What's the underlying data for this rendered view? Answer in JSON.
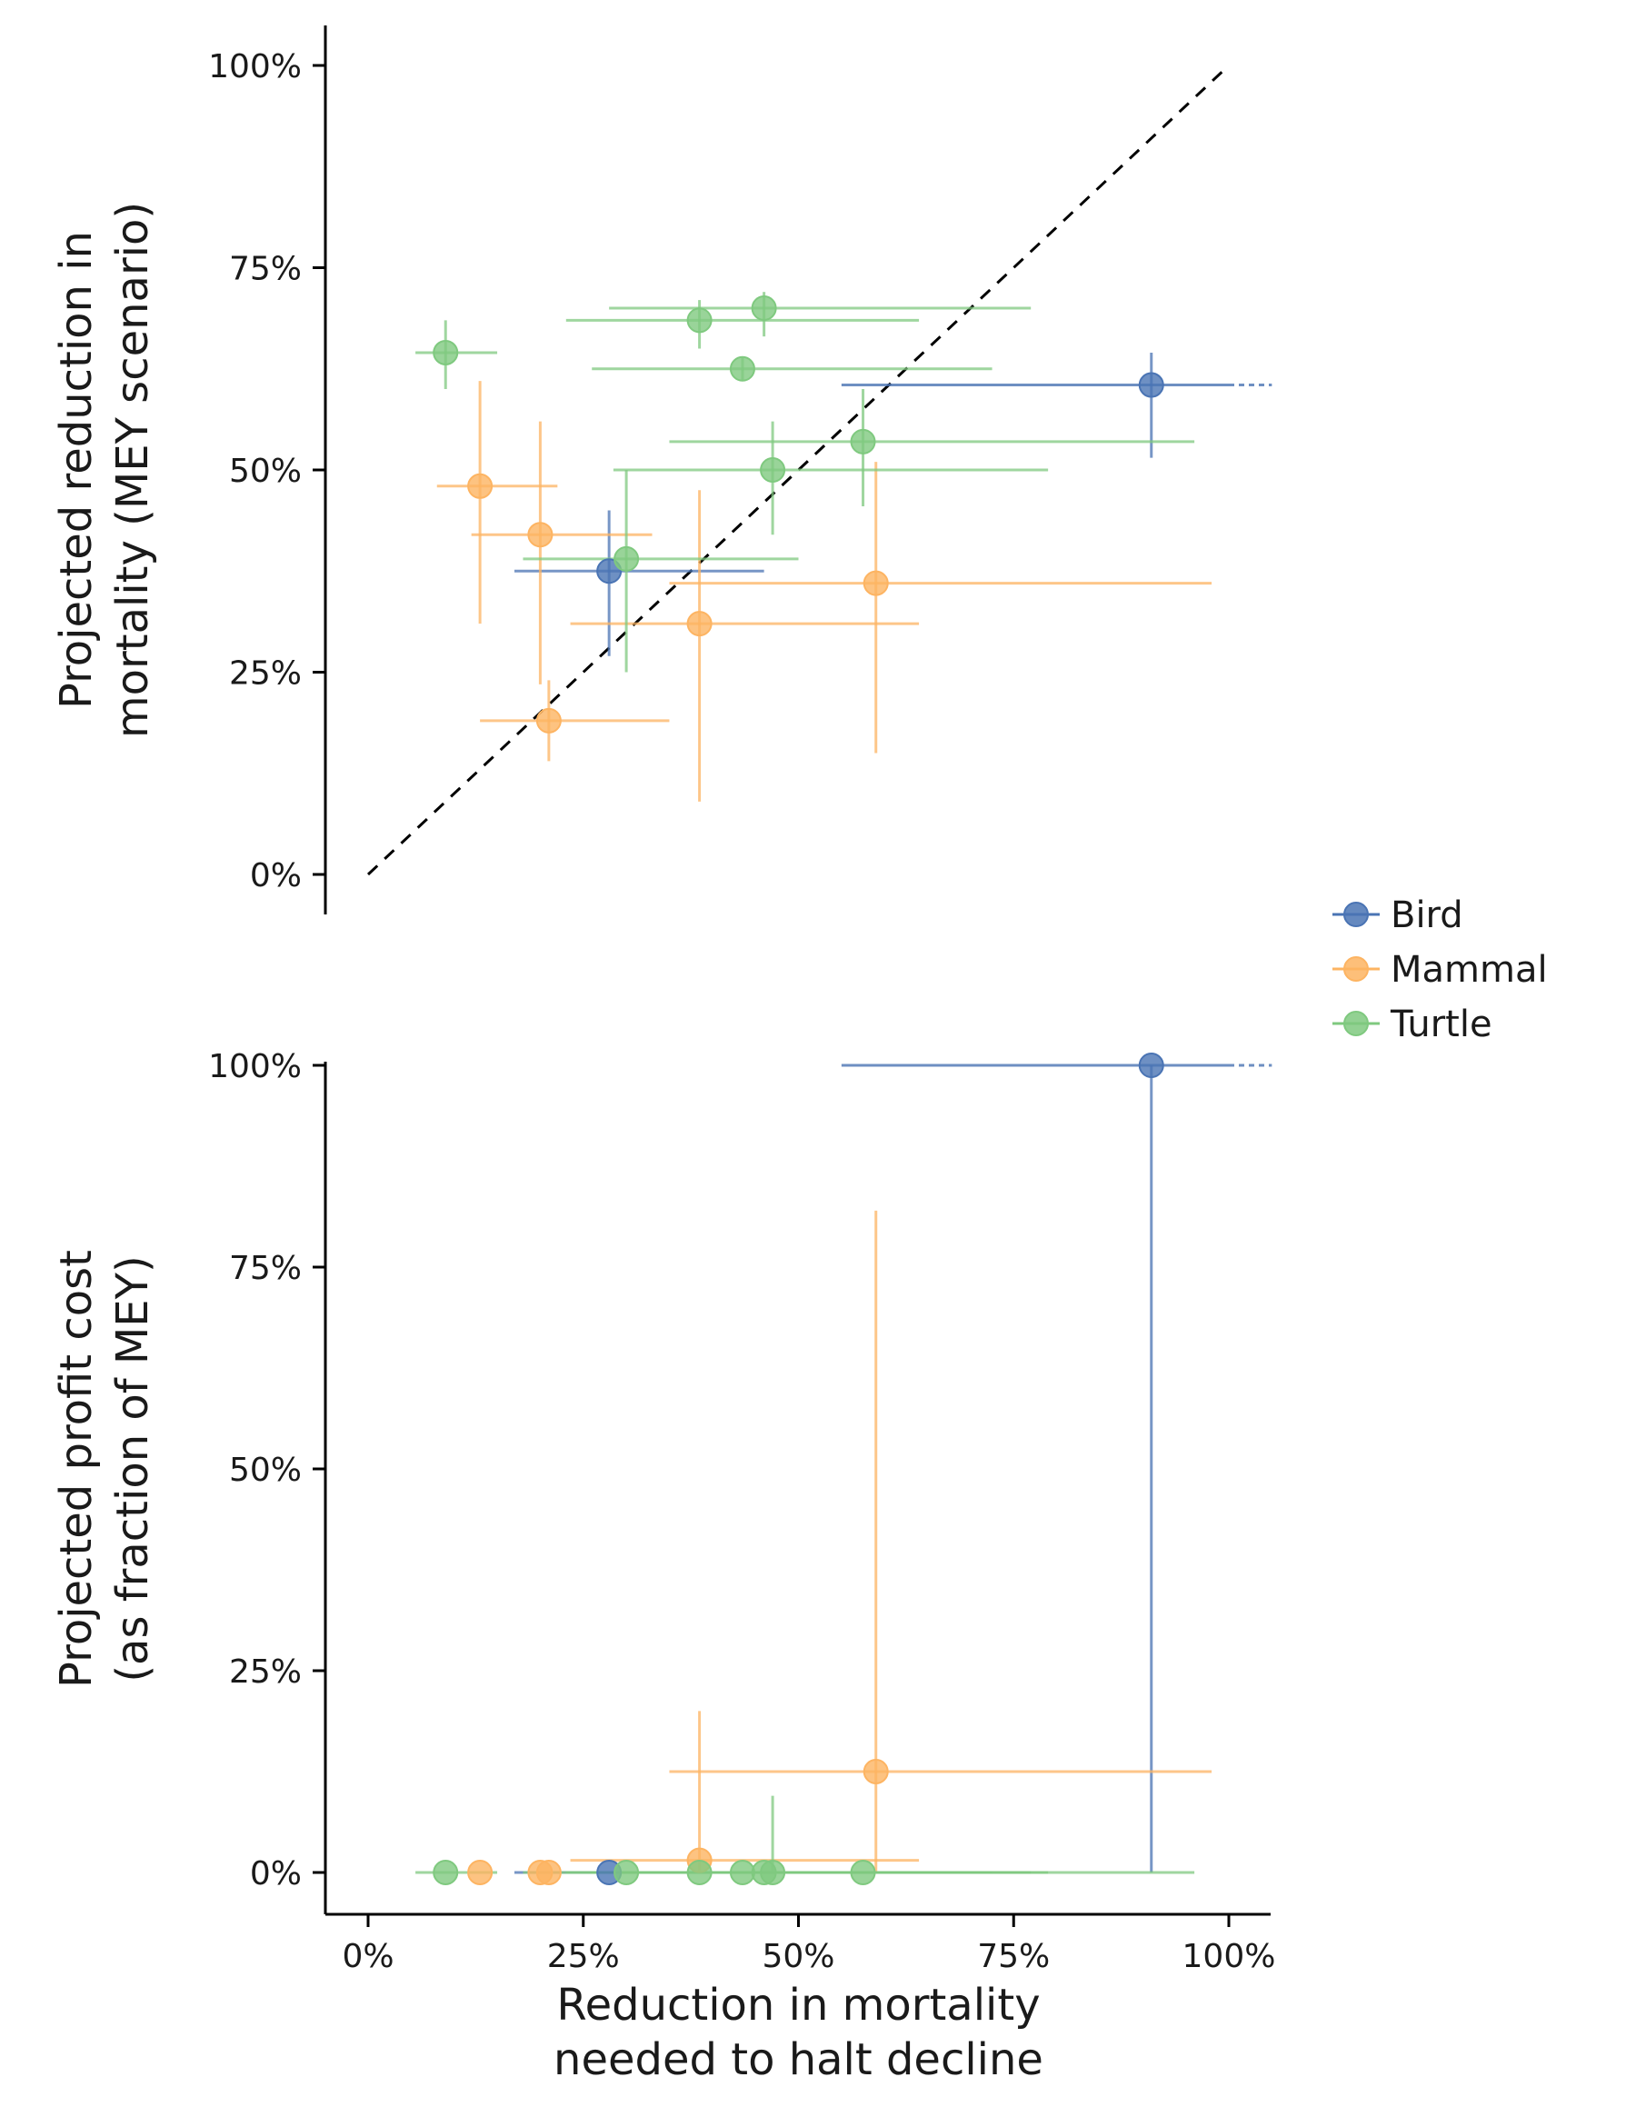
{
  "chart_data": [
    {
      "type": "scatter",
      "panel": "top",
      "ylabel_lines": [
        "Projected reduction in",
        "mortality (MEY scenario)"
      ],
      "xlim": [
        -5,
        105
      ],
      "ylim": [
        -5,
        105
      ],
      "yticks": [
        0,
        25,
        50,
        75,
        100
      ],
      "ytick_labels": [
        "0%",
        "25%",
        "50%",
        "75%",
        "100%"
      ],
      "identity_line": true,
      "points": [
        {
          "group": "Bird",
          "x": 28,
          "y": 37.5,
          "xerr": [
            17,
            46
          ],
          "yerr": [
            27,
            45
          ]
        },
        {
          "group": "Bird",
          "x": 91,
          "y": 60.5,
          "xerr": [
            55,
            105
          ],
          "yerr": [
            51.5,
            64.5
          ],
          "x_extends_beyond": true
        },
        {
          "group": "Mammal",
          "x": 13,
          "y": 48,
          "xerr": [
            8,
            22
          ],
          "yerr": [
            31,
            61
          ]
        },
        {
          "group": "Mammal",
          "x": 20,
          "y": 42,
          "xerr": [
            12,
            33
          ],
          "yerr": [
            23.5,
            56
          ]
        },
        {
          "group": "Mammal",
          "x": 21,
          "y": 19,
          "xerr": [
            13,
            35
          ],
          "yerr": [
            14,
            24
          ]
        },
        {
          "group": "Mammal",
          "x": 38.5,
          "y": 31,
          "xerr": [
            23.5,
            64
          ],
          "yerr": [
            9,
            47.5
          ]
        },
        {
          "group": "Mammal",
          "x": 59,
          "y": 36,
          "xerr": [
            35,
            98
          ],
          "yerr": [
            15,
            51
          ]
        },
        {
          "group": "Turtle",
          "x": 9,
          "y": 64.5,
          "xerr": [
            5.5,
            15
          ],
          "yerr": [
            60,
            68.5
          ]
        },
        {
          "group": "Turtle",
          "x": 30,
          "y": 39,
          "xerr": [
            18,
            50
          ],
          "yerr": [
            25,
            50
          ]
        },
        {
          "group": "Turtle",
          "x": 38.5,
          "y": 68.5,
          "xerr": [
            23,
            64
          ],
          "yerr": [
            65,
            71
          ]
        },
        {
          "group": "Turtle",
          "x": 43.5,
          "y": 62.5,
          "xerr": [
            26,
            72.5
          ],
          "yerr": [
            61,
            64
          ]
        },
        {
          "group": "Turtle",
          "x": 46,
          "y": 70,
          "xerr": [
            28,
            77
          ],
          "yerr": [
            66.5,
            72
          ]
        },
        {
          "group": "Turtle",
          "x": 47,
          "y": 50,
          "xerr": [
            28.5,
            79
          ],
          "yerr": [
            42,
            56
          ]
        },
        {
          "group": "Turtle",
          "x": 57.5,
          "y": 53.5,
          "xerr": [
            35,
            96
          ],
          "yerr": [
            45.5,
            60
          ]
        }
      ]
    },
    {
      "type": "scatter",
      "panel": "bottom",
      "ylabel_lines": [
        "Projected profit cost",
        "(as fraction of MEY)"
      ],
      "xlabel_lines": [
        "Reduction in mortality",
        "needed to halt decline"
      ],
      "xlim": [
        -5,
        105
      ],
      "ylim": [
        -5,
        105
      ],
      "xticks": [
        0,
        25,
        50,
        75,
        100
      ],
      "xtick_labels": [
        "0%",
        "25%",
        "50%",
        "75%",
        "100%"
      ],
      "yticks": [
        0,
        25,
        50,
        75,
        100
      ],
      "ytick_labels": [
        "0%",
        "25%",
        "50%",
        "75%",
        "100%"
      ],
      "points": [
        {
          "group": "Bird",
          "x": 28,
          "y": 0,
          "xerr": [
            17,
            46
          ],
          "yerr": [
            0,
            0
          ]
        },
        {
          "group": "Bird",
          "x": 91,
          "y": 100,
          "xerr": [
            55,
            105
          ],
          "yerr": [
            0,
            100
          ],
          "x_extends_beyond": true
        },
        {
          "group": "Mammal",
          "x": 13,
          "y": 0,
          "xerr": [
            13,
            13
          ],
          "yerr": [
            0,
            0
          ]
        },
        {
          "group": "Mammal",
          "x": 20,
          "y": 0,
          "xerr": [
            20,
            20
          ],
          "yerr": [
            0,
            0
          ]
        },
        {
          "group": "Mammal",
          "x": 21,
          "y": 0,
          "xerr": [
            21,
            21
          ],
          "yerr": [
            0,
            0
          ]
        },
        {
          "group": "Mammal",
          "x": 38.5,
          "y": 1.5,
          "xerr": [
            23.5,
            64
          ],
          "yerr": [
            0,
            20
          ]
        },
        {
          "group": "Mammal",
          "x": 59,
          "y": 12.5,
          "xerr": [
            35,
            98
          ],
          "yerr": [
            0,
            82
          ]
        },
        {
          "group": "Turtle",
          "x": 9,
          "y": 0,
          "xerr": [
            5.5,
            15
          ],
          "yerr": [
            0,
            0
          ]
        },
        {
          "group": "Turtle",
          "x": 30,
          "y": 0,
          "xerr": [
            18,
            50
          ],
          "yerr": [
            0,
            0
          ]
        },
        {
          "group": "Turtle",
          "x": 38.5,
          "y": 0,
          "xerr": [
            23,
            64
          ],
          "yerr": [
            0,
            0
          ]
        },
        {
          "group": "Turtle",
          "x": 43.5,
          "y": 0,
          "xerr": [
            26,
            72.5
          ],
          "yerr": [
            0,
            0
          ]
        },
        {
          "group": "Turtle",
          "x": 46,
          "y": 0,
          "xerr": [
            28,
            77
          ],
          "yerr": [
            0,
            0
          ]
        },
        {
          "group": "Turtle",
          "x": 47,
          "y": 0,
          "xerr": [
            28.5,
            79
          ],
          "yerr": [
            0,
            9.5
          ]
        },
        {
          "group": "Turtle",
          "x": 57.5,
          "y": 0,
          "xerr": [
            35,
            96
          ],
          "yerr": [
            0,
            0
          ]
        }
      ]
    }
  ],
  "legend": {
    "position": "right",
    "items": [
      {
        "label": "Bird",
        "color": "#4a74b4"
      },
      {
        "label": "Mammal",
        "color": "#fdb462"
      },
      {
        "label": "Turtle",
        "color": "#7fc97f"
      }
    ]
  }
}
